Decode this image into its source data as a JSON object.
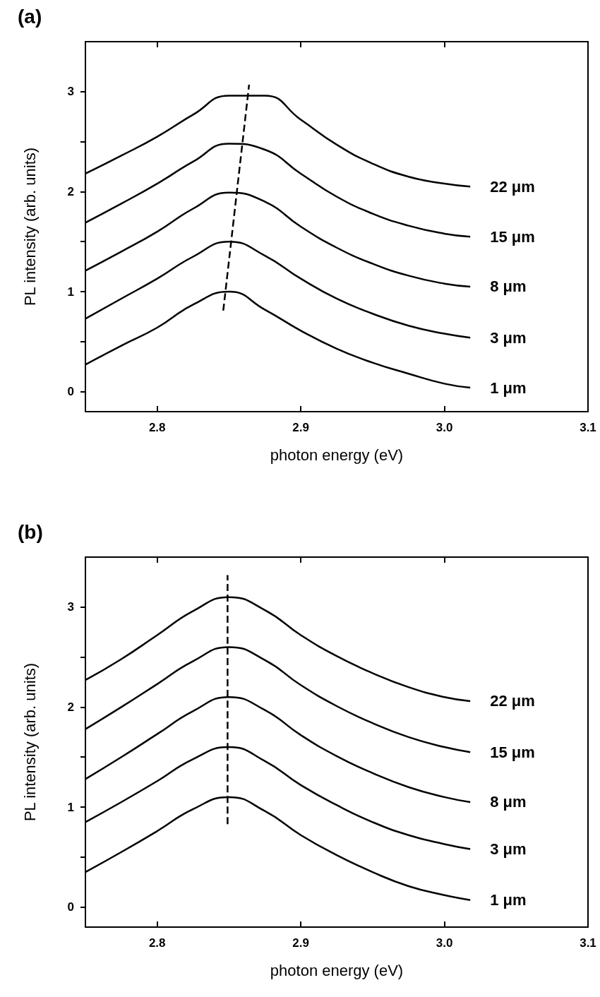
{
  "chart_data": [
    {
      "type": "line",
      "title": "(a)",
      "xlabel": "photon energy (eV)",
      "ylabel": "PL intensity (arb. units)",
      "xlim": [
        2.75,
        3.1
      ],
      "xticks": [
        2.8,
        2.9,
        {
          "value": 3.0,
          "label": "3.0"
        },
        3.1
      ],
      "ylim": [
        -0.2,
        3.5
      ],
      "yticks": [
        0,
        {
          "value": 0.5,
          "label": null
        },
        1,
        {
          "value": 1.5,
          "label": null
        },
        2,
        {
          "value": 2.5,
          "label": null
        },
        3
      ],
      "marker": "none",
      "x": [
        2.75,
        2.775,
        2.8,
        2.825,
        2.85,
        2.875,
        2.9,
        2.925,
        2.95,
        2.975,
        3.0,
        3.018
      ],
      "series": [
        {
          "name": "1 μm",
          "color": "#000000",
          "values": [
            0.27,
            0.46,
            0.64,
            0.87,
            1.0,
            0.82,
            0.61,
            0.43,
            0.29,
            0.18,
            0.08,
            0.04
          ]
        },
        {
          "name": "3 μm",
          "color": "#000000",
          "values": [
            0.73,
            0.93,
            1.13,
            1.35,
            1.5,
            1.36,
            1.13,
            0.93,
            0.78,
            0.66,
            0.58,
            0.54
          ]
        },
        {
          "name": "8 μm",
          "color": "#000000",
          "values": [
            1.21,
            1.4,
            1.6,
            1.83,
            1.99,
            1.9,
            1.65,
            1.44,
            1.28,
            1.16,
            1.08,
            1.05
          ]
        },
        {
          "name": "15 μm",
          "color": "#000000",
          "values": [
            1.69,
            1.88,
            2.08,
            2.3,
            2.48,
            2.42,
            2.18,
            1.95,
            1.78,
            1.66,
            1.58,
            1.55
          ]
        },
        {
          "name": "22 μm",
          "color": "#000000",
          "values": [
            2.18,
            2.36,
            2.55,
            2.77,
            2.96,
            2.96,
            2.72,
            2.47,
            2.28,
            2.15,
            2.08,
            2.05
          ]
        },
        {
          "color": "#000000",
          "line_style": "dashed",
          "x": [
            2.846,
            2.864
          ],
          "values": [
            0.81,
            3.07
          ]
        }
      ]
    },
    {
      "type": "line",
      "title": "(b)",
      "xlabel": "photon energy (eV)",
      "ylabel": "PL intensity (arb. units)",
      "xlim": [
        2.75,
        3.1
      ],
      "xticks": [
        2.8,
        2.9,
        {
          "value": 3.0,
          "label": "3.0"
        },
        3.1
      ],
      "ylim": [
        -0.2,
        3.5
      ],
      "yticks": [
        0,
        {
          "value": 0.5,
          "label": null
        },
        1,
        {
          "value": 1.5,
          "label": null
        },
        2,
        {
          "value": 2.5,
          "label": null
        },
        3
      ],
      "marker": "none",
      "x": [
        2.75,
        2.775,
        2.8,
        2.825,
        2.85,
        2.875,
        2.9,
        2.925,
        2.95,
        2.975,
        3.0,
        3.018
      ],
      "series": [
        {
          "name": "1 μm",
          "color": "#000000",
          "values": [
            0.35,
            0.55,
            0.76,
            0.98,
            1.1,
            0.96,
            0.72,
            0.52,
            0.35,
            0.21,
            0.12,
            0.07
          ]
        },
        {
          "name": "3 μm",
          "color": "#000000",
          "values": [
            0.85,
            1.05,
            1.26,
            1.48,
            1.6,
            1.46,
            1.22,
            1.02,
            0.85,
            0.72,
            0.63,
            0.58
          ]
        },
        {
          "name": "8 μm",
          "color": "#000000",
          "values": [
            1.28,
            1.5,
            1.73,
            1.96,
            2.1,
            1.97,
            1.72,
            1.51,
            1.34,
            1.2,
            1.1,
            1.05
          ]
        },
        {
          "name": "15 μm",
          "color": "#000000",
          "values": [
            1.78,
            2.0,
            2.23,
            2.46,
            2.6,
            2.47,
            2.22,
            2.01,
            1.84,
            1.7,
            1.6,
            1.55
          ]
        },
        {
          "name": "22 μm",
          "color": "#000000",
          "values": [
            2.27,
            2.48,
            2.72,
            2.96,
            3.1,
            2.97,
            2.72,
            2.51,
            2.34,
            2.2,
            2.1,
            2.06
          ]
        },
        {
          "color": "#000000",
          "line_style": "dashed",
          "x": [
            2.849,
            2.849
          ],
          "values": [
            0.83,
            3.32
          ]
        }
      ]
    }
  ]
}
